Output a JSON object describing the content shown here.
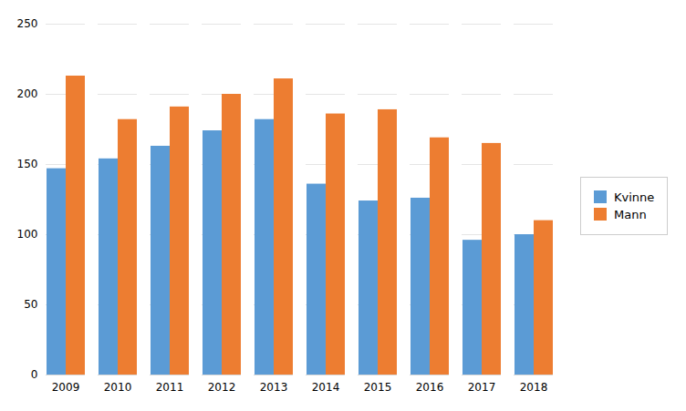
{
  "chart_data": {
    "type": "bar",
    "categories": [
      "2009",
      "2010",
      "2011",
      "2012",
      "2013",
      "2014",
      "2015",
      "2016",
      "2017",
      "2018"
    ],
    "series": [
      {
        "name": "Kvinne",
        "color": "#5B9BD5",
        "values": [
          147,
          154,
          163,
          174,
          182,
          136,
          124,
          126,
          96,
          100
        ]
      },
      {
        "name": "Mann",
        "color": "#ED7D31",
        "values": [
          213,
          182,
          191,
          200,
          211,
          186,
          189,
          169,
          165,
          110
        ]
      }
    ],
    "ylim": [
      0,
      250
    ],
    "yticks": [
      0,
      50,
      100,
      150,
      200,
      250
    ],
    "grid": true,
    "legend": "right"
  }
}
